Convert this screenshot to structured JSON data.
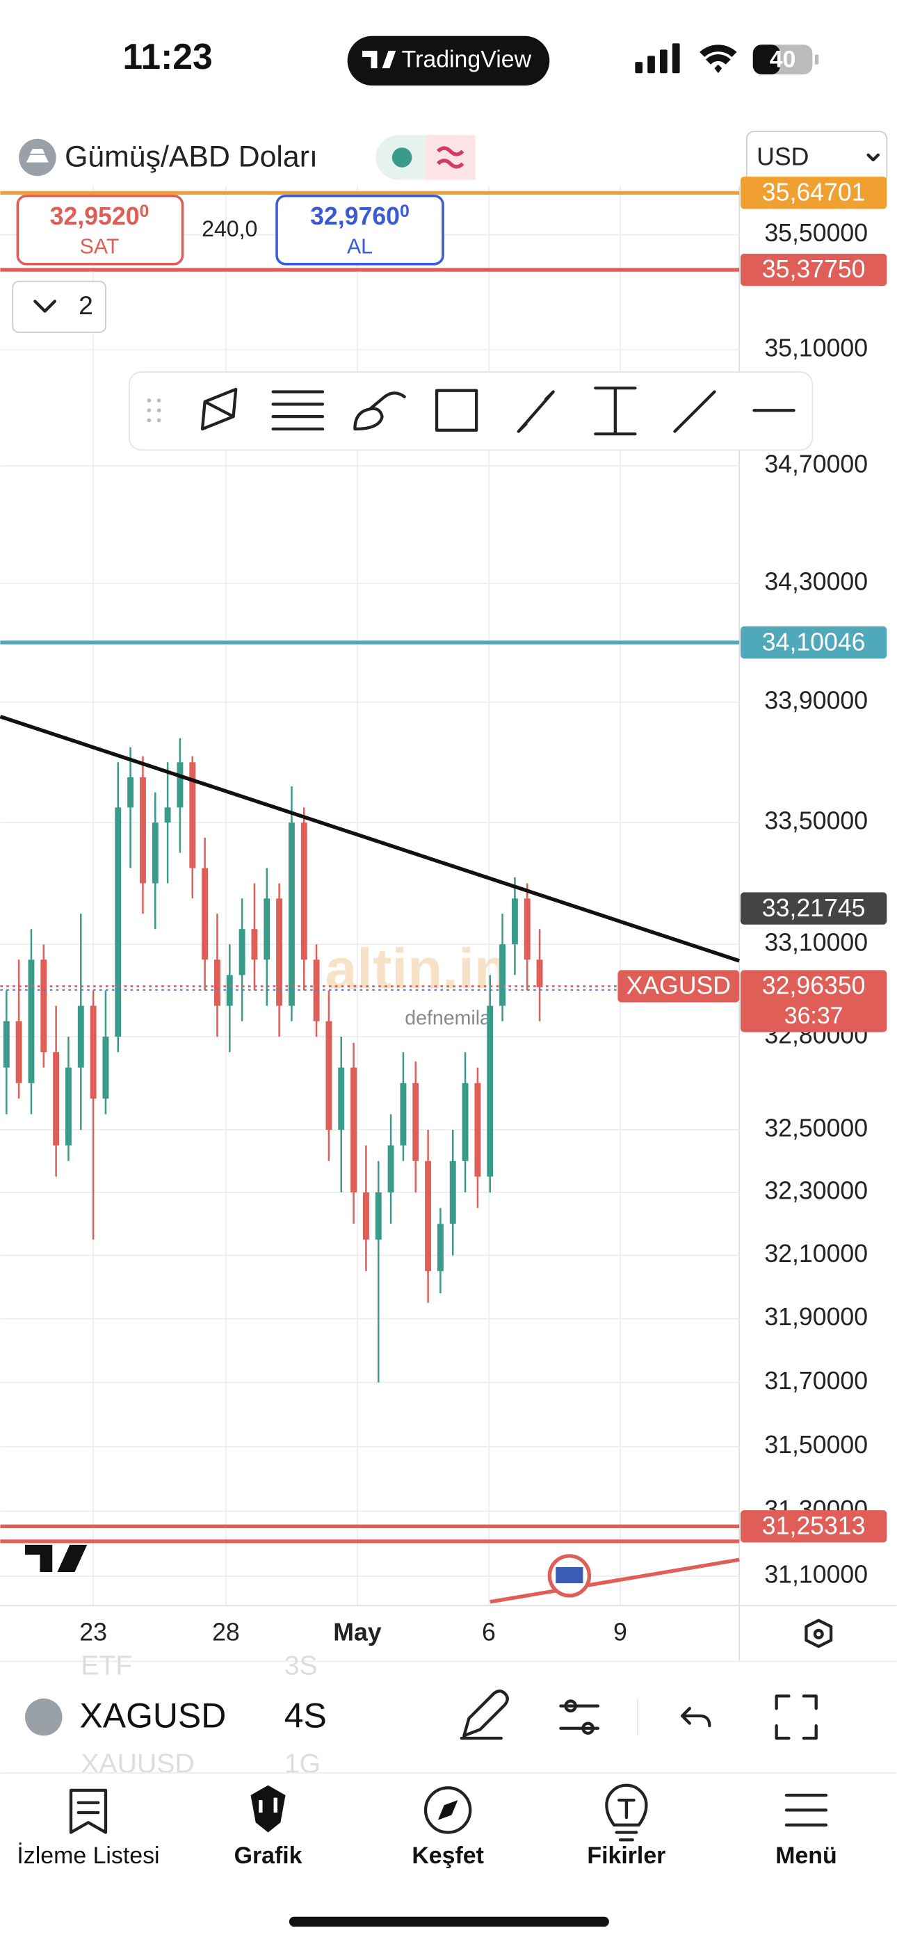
{
  "status_bar": {
    "time": "11:23",
    "app": "TradingView",
    "battery": "40"
  },
  "header": {
    "symbol_name": "Gümüş/ABD Doları",
    "currency": "USD"
  },
  "quote": {
    "sell": {
      "price": "32,9520",
      "pip": "0",
      "label": "SAT"
    },
    "spread": "240,0",
    "buy": {
      "price": "32,9760",
      "pip": "0",
      "label": "AL"
    }
  },
  "collapse_count": "2",
  "chart": {
    "type": "candlestick",
    "log_scale": true,
    "up_color": "#3a9b8b",
    "down_color": "#df5e58",
    "grid": true,
    "ylim": [
      31.01,
      35.89
    ],
    "yticks": [
      {
        "value": 35.5,
        "label": "35,50000"
      },
      {
        "value": 35.1,
        "label": "35,10000"
      },
      {
        "value": 34.7,
        "label": "34,70000"
      },
      {
        "value": 34.3,
        "label": "34,30000"
      },
      {
        "value": 33.9,
        "label": "33,90000"
      },
      {
        "value": 33.5,
        "label": "33,50000"
      },
      {
        "value": 33.1,
        "label": "33,10000"
      },
      {
        "value": 32.8,
        "label": "32,80000"
      },
      {
        "value": 32.5,
        "label": "32,50000"
      },
      {
        "value": 32.3,
        "label": "32,30000"
      },
      {
        "value": 32.1,
        "label": "32,10000"
      },
      {
        "value": 31.9,
        "label": "31,90000"
      },
      {
        "value": 31.7,
        "label": "31,70000"
      },
      {
        "value": 31.5,
        "label": "31,50000"
      },
      {
        "value": 31.3,
        "label": "31,30000"
      },
      {
        "value": 31.1,
        "label": "31,10000"
      }
    ],
    "x_labels": [
      "23",
      "28",
      "May",
      "6",
      "9"
    ],
    "candles": [
      [
        32.7,
        32.95,
        32.55,
        32.85
      ],
      [
        32.85,
        33.05,
        32.6,
        32.65
      ],
      [
        32.65,
        33.15,
        32.55,
        33.05
      ],
      [
        33.05,
        33.1,
        32.7,
        32.75
      ],
      [
        32.75,
        32.9,
        32.35,
        32.45
      ],
      [
        32.45,
        32.8,
        32.4,
        32.7
      ],
      [
        32.7,
        33.2,
        32.5,
        32.9
      ],
      [
        32.9,
        32.95,
        32.15,
        32.6
      ],
      [
        32.6,
        32.95,
        32.55,
        32.8
      ],
      [
        32.8,
        33.7,
        32.75,
        33.55
      ],
      [
        33.55,
        33.75,
        33.35,
        33.65
      ],
      [
        33.65,
        33.72,
        33.2,
        33.3
      ],
      [
        33.3,
        33.6,
        33.15,
        33.5
      ],
      [
        33.5,
        33.7,
        33.3,
        33.55
      ],
      [
        33.55,
        33.78,
        33.4,
        33.7
      ],
      [
        33.7,
        33.72,
        33.25,
        33.35
      ],
      [
        33.35,
        33.45,
        32.95,
        33.05
      ],
      [
        33.05,
        33.2,
        32.8,
        32.9
      ],
      [
        32.9,
        33.1,
        32.75,
        33.0
      ],
      [
        33.0,
        33.25,
        32.85,
        33.15
      ],
      [
        33.15,
        33.3,
        32.95,
        33.05
      ],
      [
        33.05,
        33.35,
        32.9,
        33.25
      ],
      [
        33.25,
        33.3,
        32.8,
        32.9
      ],
      [
        32.9,
        33.62,
        32.85,
        33.5
      ],
      [
        33.5,
        33.55,
        32.95,
        33.05
      ],
      [
        33.05,
        33.1,
        32.8,
        32.85
      ],
      [
        32.85,
        32.95,
        32.4,
        32.5
      ],
      [
        32.5,
        32.8,
        32.3,
        32.7
      ],
      [
        32.7,
        32.78,
        32.2,
        32.3
      ],
      [
        32.3,
        32.45,
        32.05,
        32.15
      ],
      [
        32.15,
        32.4,
        31.7,
        32.3
      ],
      [
        32.3,
        32.55,
        32.2,
        32.45
      ],
      [
        32.45,
        32.75,
        32.4,
        32.65
      ],
      [
        32.65,
        32.72,
        32.3,
        32.4
      ],
      [
        32.4,
        32.5,
        31.95,
        32.05
      ],
      [
        32.05,
        32.25,
        31.98,
        32.2
      ],
      [
        32.2,
        32.5,
        32.1,
        32.4
      ],
      [
        32.4,
        32.75,
        32.3,
        32.65
      ],
      [
        32.65,
        32.7,
        32.25,
        32.35
      ],
      [
        32.35,
        33.0,
        32.3,
        32.9
      ],
      [
        32.9,
        33.2,
        32.85,
        33.1
      ],
      [
        33.1,
        33.32,
        33.0,
        33.25
      ],
      [
        33.25,
        33.3,
        32.95,
        33.05
      ],
      [
        33.05,
        33.15,
        32.85,
        32.96
      ]
    ],
    "price_lines": [
      {
        "value": 35.64701,
        "label": "35,64701",
        "color": "#f0a030"
      },
      {
        "value": 35.3775,
        "label": "35,37750",
        "color": "#df5e58"
      },
      {
        "value": 34.10046,
        "label": "34,10046",
        "color": "#4fa9bb"
      },
      {
        "value": 33.21745,
        "label": "33,21745",
        "color": "#444444",
        "line": false
      },
      {
        "value": 31.207,
        "color": "#df5e58"
      },
      {
        "value": 31.25313,
        "label": "31,25313",
        "color": "#df5e58"
      }
    ],
    "last_price": {
      "symbol": "XAGUSD",
      "value": 32.9635,
      "label": "32,96350",
      "countdown": "36:37",
      "color": "#df5e58"
    },
    "watermark": {
      "brand": "altin.in",
      "user": "defnemila"
    }
  },
  "toolbar": {
    "symbol": "XAGUSD",
    "interval": "4S",
    "prev_symbol": "ETF",
    "prev_interval": "3S",
    "next_symbol": "XAUUSD",
    "next_interval": "1G"
  },
  "nav": [
    "İzleme Listesi",
    "Grafik",
    "Keşfet",
    "Fikirler",
    "Menü"
  ]
}
